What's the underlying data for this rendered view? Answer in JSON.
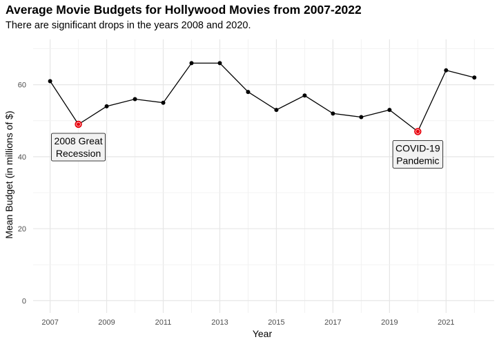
{
  "chart_data": {
    "type": "line",
    "title": "Average Movie Budgets for Hollywood Movies from 2007-2022",
    "subtitle": "There are significant drops in the years 2008 and 2020.",
    "xlabel": "Year",
    "ylabel": "Mean Budget (in millions of $)",
    "x": [
      2007,
      2008,
      2009,
      2010,
      2011,
      2012,
      2013,
      2014,
      2015,
      2016,
      2017,
      2018,
      2019,
      2020,
      2021,
      2022
    ],
    "values": [
      61,
      49,
      54,
      56,
      55,
      66,
      66,
      58,
      53,
      57,
      52,
      51,
      53,
      47,
      64,
      62
    ],
    "xticks": [
      2007,
      2009,
      2011,
      2013,
      2015,
      2017,
      2019,
      2021
    ],
    "yticks": [
      0,
      20,
      40,
      60
    ],
    "xlim": [
      2006.4,
      2022.7
    ],
    "ylim": [
      -3.4,
      72.6
    ],
    "grid": true,
    "highlight_color": "#e8000b",
    "annotations": [
      {
        "x": 2008,
        "y": 49,
        "lines": [
          "2008 Great",
          "Recession"
        ]
      },
      {
        "x": 2020,
        "y": 47,
        "lines": [
          "COVID-19",
          "Pandemic"
        ]
      }
    ]
  }
}
